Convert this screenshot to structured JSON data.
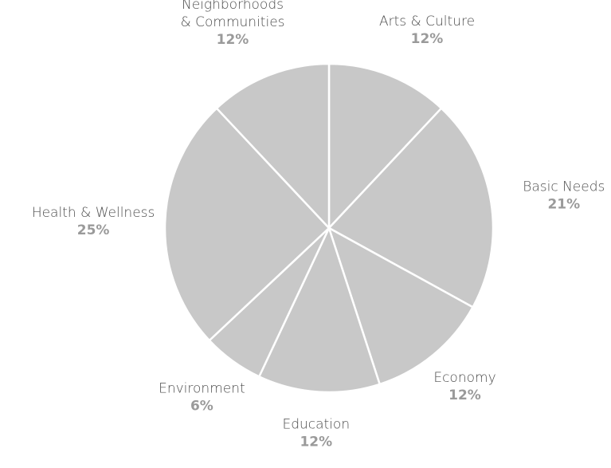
{
  "chart_data": {
    "type": "pie",
    "categories": [
      "Arts & Culture",
      "Basic Needs",
      "Economy",
      "Education",
      "Environment",
      "Health & Wellness",
      "Neighborhoods & Communities"
    ],
    "label_lines": [
      [
        "Arts & Culture"
      ],
      [
        "Basic Needs"
      ],
      [
        "Economy"
      ],
      [
        "Education"
      ],
      [
        "Environment"
      ],
      [
        "Health & Wellness"
      ],
      [
        "Neighborhoods",
        "& Communities"
      ]
    ],
    "values": [
      12,
      21,
      12,
      12,
      6,
      25,
      12
    ],
    "value_labels": [
      "12%",
      "21%",
      "12%",
      "12%",
      "6%",
      "25%",
      "12%"
    ],
    "start_angle_deg": 0,
    "direction": "clockwise",
    "slice_color": "#c8c8c8",
    "edge_color": "#ffffff",
    "label_color": "#4d4d4d",
    "value_color": "#9a9a9a",
    "title": "",
    "legend": "none"
  }
}
